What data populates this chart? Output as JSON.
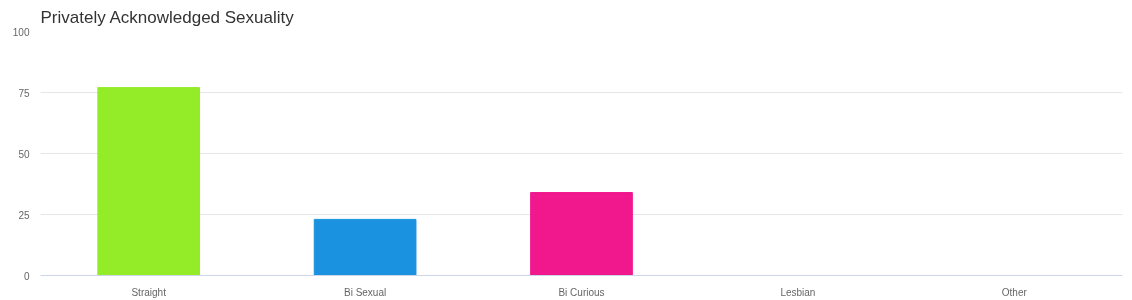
{
  "chart_data": {
    "type": "bar",
    "title": "Privately Acknowledged Sexuality",
    "categories": [
      "Straight",
      "Bi Sexual",
      "Bi Curious",
      "Lesbian",
      "Other"
    ],
    "values": [
      77,
      23,
      34,
      0,
      0
    ],
    "colors": [
      "#94eb28",
      "#1a92df",
      "#f0188c",
      "#999999",
      "#999999"
    ],
    "ylim": [
      0,
      100
    ],
    "yticks": [
      0,
      25,
      50,
      75,
      100
    ],
    "grid": "y"
  }
}
